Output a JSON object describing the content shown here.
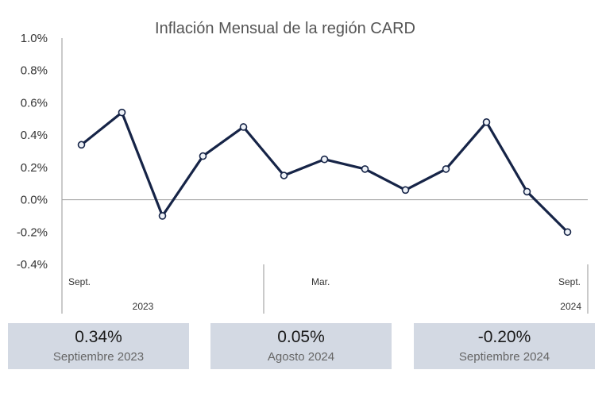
{
  "chart_data": {
    "type": "line",
    "title": "Inflación Mensual de la región CARD",
    "y_tick_labels": [
      "1.0%",
      "0.8%",
      "0.6%",
      "0.4%",
      "0.2%",
      "0.0%",
      "-0.2%",
      "-0.4%"
    ],
    "ylim": [
      -0.4,
      1.0
    ],
    "x_category_labels": [
      "Sept.",
      "Mar.",
      "Sept."
    ],
    "x_year_labels": [
      "2023",
      "2024"
    ],
    "series": [
      {
        "values": [
          0.34,
          0.54,
          -0.1,
          0.27,
          0.45,
          0.15,
          0.25,
          0.19,
          0.06,
          0.19,
          0.48,
          0.05,
          -0.2
        ],
        "color": "#162447"
      }
    ],
    "grid": false
  },
  "cards": [
    {
      "value": "0.34%",
      "label": "Septiembre 2023"
    },
    {
      "value": "0.05%",
      "label": "Agosto 2024"
    },
    {
      "value": "-0.20%",
      "label": "Septiembre 2024"
    }
  ],
  "colors": {
    "line": "#162447",
    "card_bg": "#d3d9e3",
    "axis": "#a6a6a6"
  }
}
